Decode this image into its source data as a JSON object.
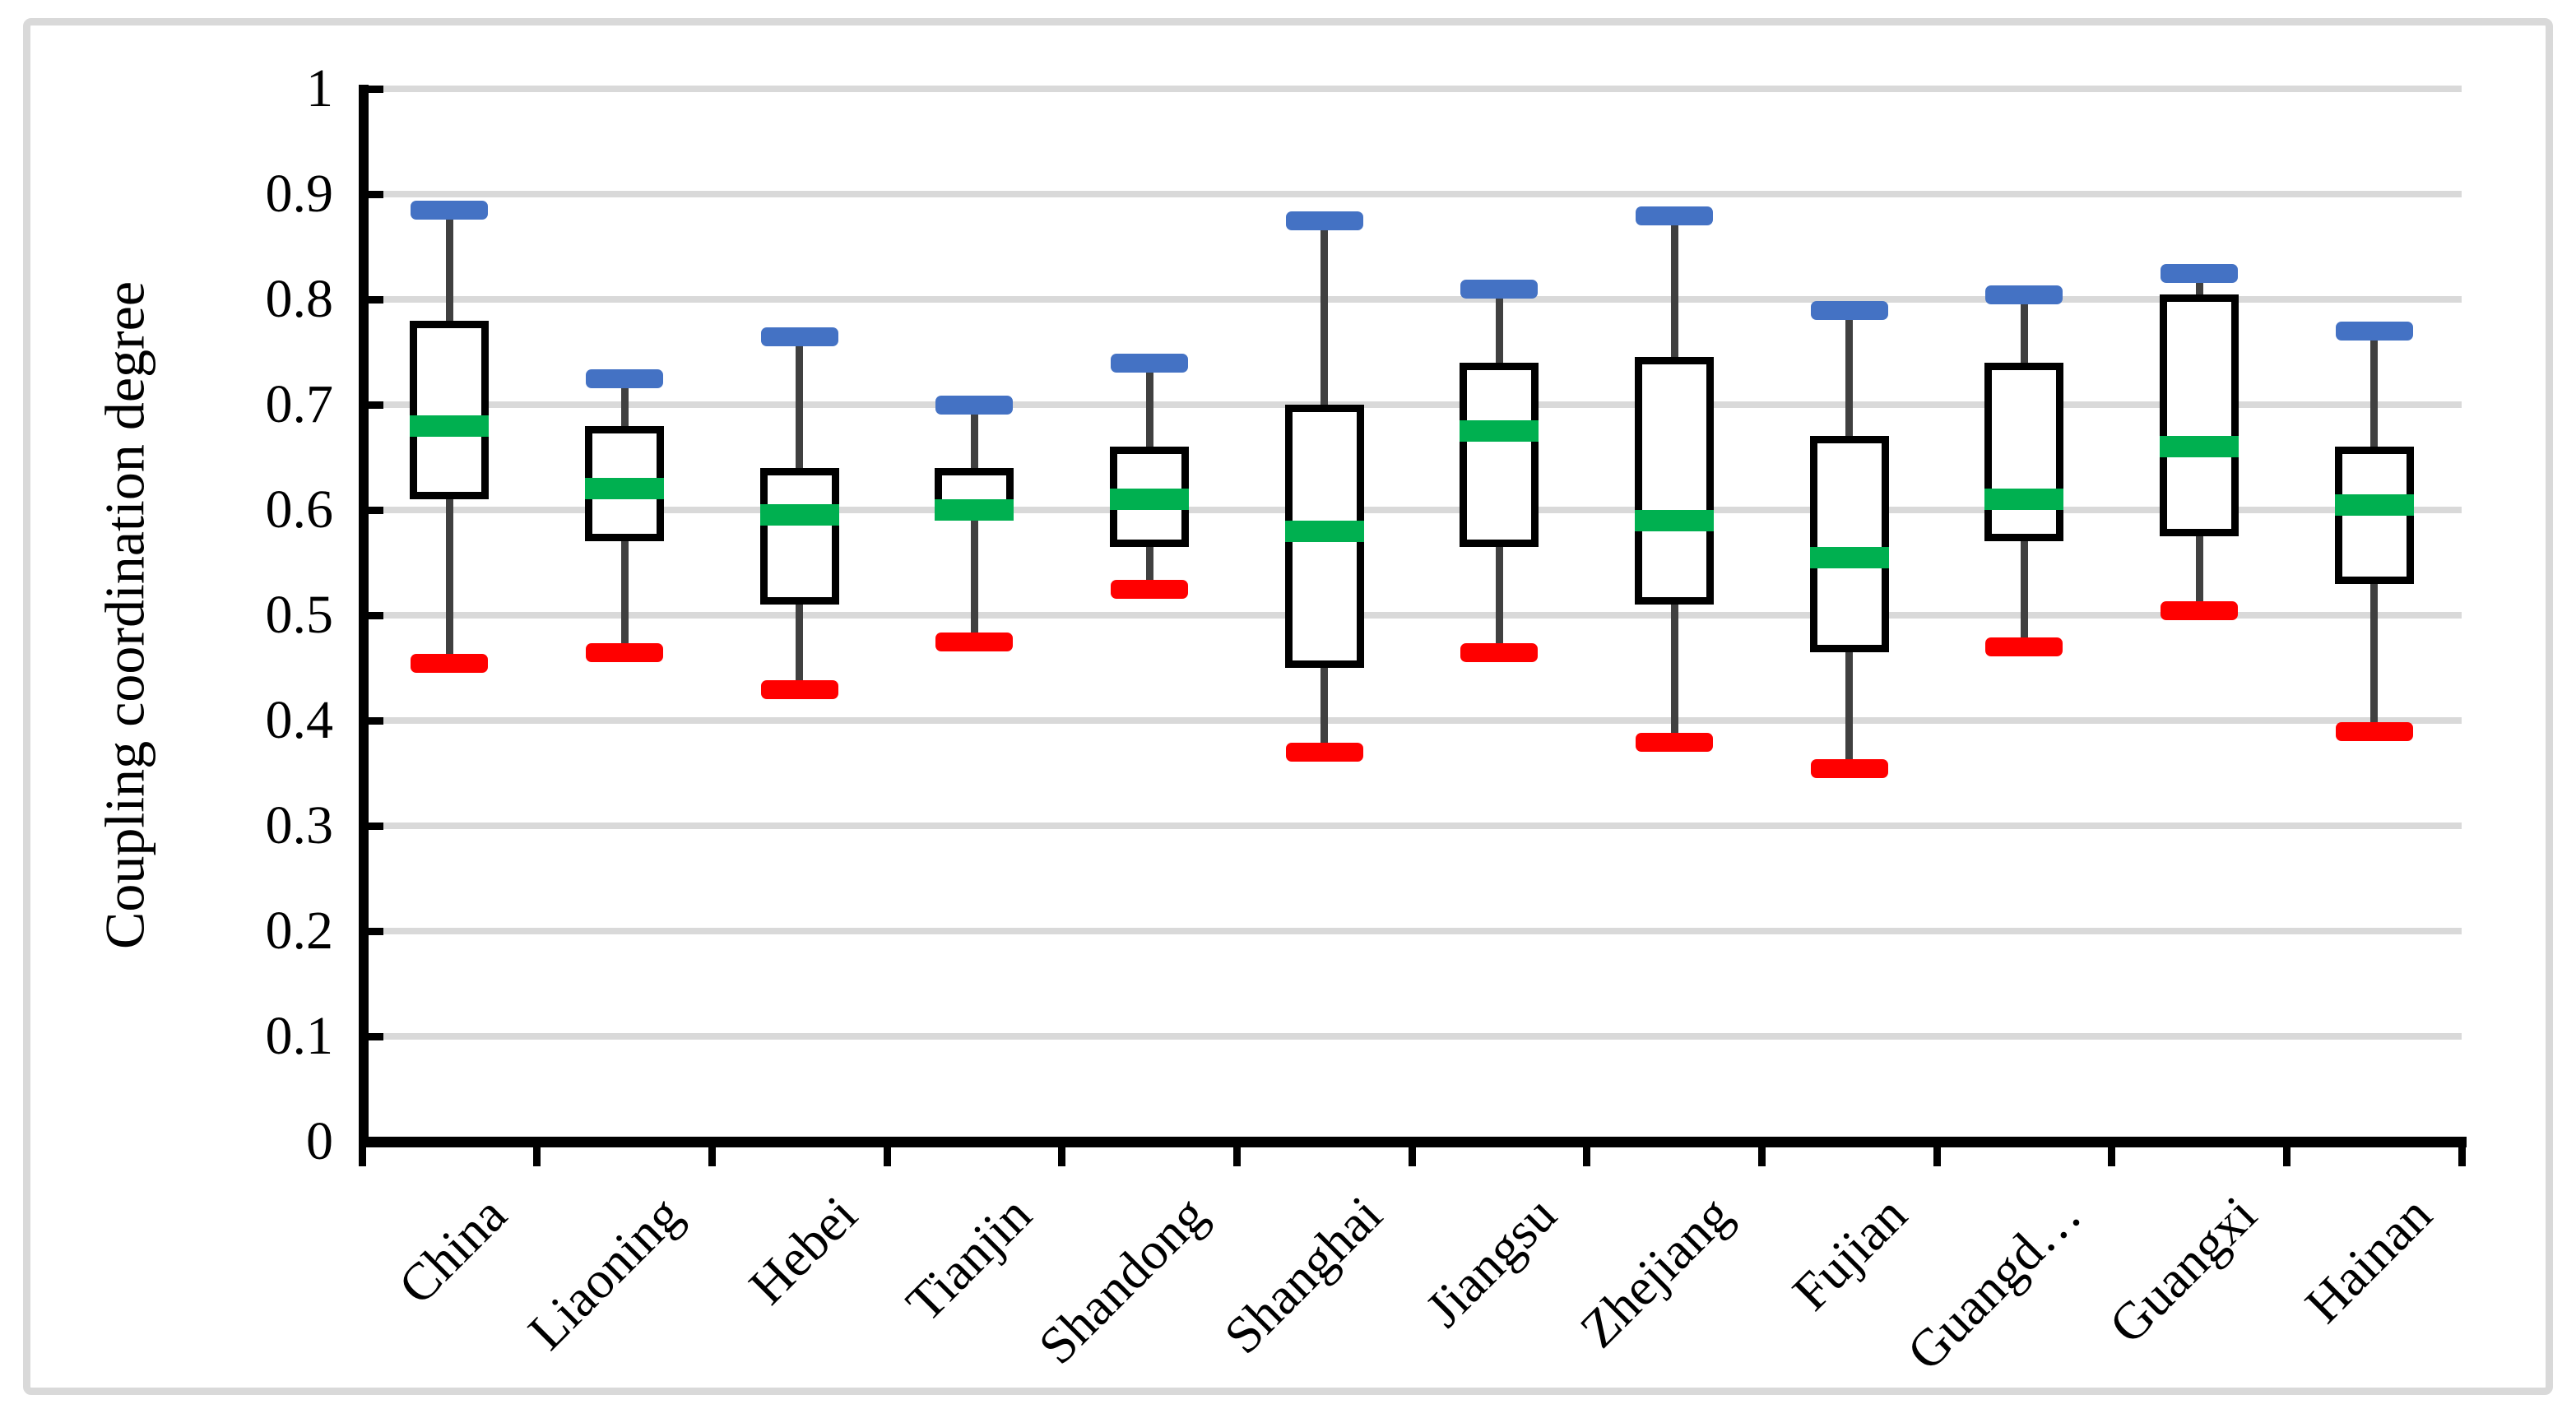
{
  "figure": {
    "background": "#ffffff",
    "frame_color": "#d9d9d9"
  },
  "chart_data": {
    "type": "boxplot",
    "title": "",
    "xlabel": "",
    "ylabel": "Coupling coordination degree",
    "ylim": [
      0,
      1
    ],
    "grid": "horizontal",
    "legend": "none",
    "yticks": [
      {
        "value": 1.0,
        "label": "1"
      },
      {
        "value": 0.9,
        "label": "0.9"
      },
      {
        "value": 0.8,
        "label": "0.8"
      },
      {
        "value": 0.7,
        "label": "0.7"
      },
      {
        "value": 0.6,
        "label": "0.6"
      },
      {
        "value": 0.5,
        "label": "0.5"
      },
      {
        "value": 0.4,
        "label": "0.4"
      },
      {
        "value": 0.3,
        "label": "0.3"
      },
      {
        "value": 0.2,
        "label": "0.2"
      },
      {
        "value": 0.1,
        "label": "0.1"
      },
      {
        "value": 0.0,
        "label": "0"
      }
    ],
    "categories": [
      "China",
      "Liaoning",
      "Hebei",
      "Tianjin",
      "Shandong",
      "Shanghai",
      "Jiangsu",
      "Zhejiang",
      "Fujian",
      "Guangd…",
      "Guangxi",
      "Hainan"
    ],
    "series": [
      {
        "name": "China",
        "min": 0.455,
        "q1": 0.61,
        "median": 0.68,
        "q3": 0.78,
        "max": 0.885
      },
      {
        "name": "Liaoning",
        "min": 0.465,
        "q1": 0.57,
        "median": 0.62,
        "q3": 0.68,
        "max": 0.725
      },
      {
        "name": "Hebei",
        "min": 0.43,
        "q1": 0.51,
        "median": 0.595,
        "q3": 0.64,
        "max": 0.765
      },
      {
        "name": "Tianjin",
        "min": 0.475,
        "q1": 0.59,
        "median": 0.6,
        "q3": 0.64,
        "max": 0.7
      },
      {
        "name": "Shandong",
        "min": 0.525,
        "q1": 0.565,
        "median": 0.61,
        "q3": 0.66,
        "max": 0.74
      },
      {
        "name": "Shanghai",
        "min": 0.37,
        "q1": 0.45,
        "median": 0.58,
        "q3": 0.7,
        "max": 0.875
      },
      {
        "name": "Jiangsu",
        "min": 0.465,
        "q1": 0.565,
        "median": 0.675,
        "q3": 0.74,
        "max": 0.81
      },
      {
        "name": "Zhejiang",
        "min": 0.38,
        "q1": 0.51,
        "median": 0.59,
        "q3": 0.745,
        "max": 0.88
      },
      {
        "name": "Fujian",
        "min": 0.355,
        "q1": 0.465,
        "median": 0.555,
        "q3": 0.67,
        "max": 0.79
      },
      {
        "name": "Guangd…",
        "min": 0.47,
        "q1": 0.57,
        "median": 0.61,
        "q3": 0.74,
        "max": 0.805
      },
      {
        "name": "Guangxi",
        "min": 0.505,
        "q1": 0.575,
        "median": 0.66,
        "q3": 0.805,
        "max": 0.825
      },
      {
        "name": "Hainan",
        "min": 0.39,
        "q1": 0.53,
        "median": 0.605,
        "q3": 0.66,
        "max": 0.77
      }
    ],
    "colors": {
      "max_cap": "#4472c4",
      "min_cap": "#ff0000",
      "median": "#00b050",
      "box_border": "#000000",
      "box_fill": "#ffffff",
      "whisker": "#404040",
      "gridline": "#d9d9d9",
      "axis": "#000000"
    }
  }
}
